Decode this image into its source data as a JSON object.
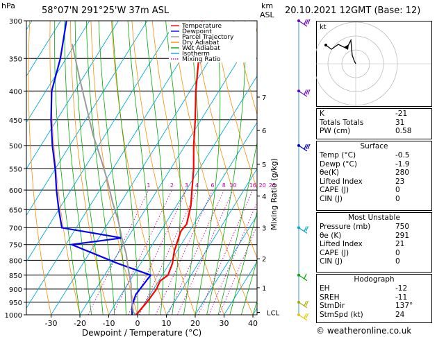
{
  "header": {
    "pressure_unit": "hPa",
    "location": "58°07'N  291°25'W  37m  ASL",
    "height_unit_line1": "km",
    "height_unit_line2": "ASL",
    "datetime": "20.10.2021  12GMT  (Base: 12)"
  },
  "chart_data": {
    "type": "line",
    "title": "",
    "xlabel": "Dewpoint / Temperature (°C)",
    "ylabel": "hPa",
    "xlim": [
      -35,
      40
    ],
    "ylim": [
      1000,
      300
    ],
    "x_ticks": [
      -30,
      -20,
      -10,
      0,
      10,
      20,
      30,
      40
    ],
    "pressure_levels": [
      300,
      350,
      400,
      450,
      500,
      550,
      600,
      650,
      700,
      750,
      800,
      850,
      900,
      950,
      1000
    ],
    "km_ticks": [
      {
        "label": "7",
        "p": 410
      },
      {
        "label": "6",
        "p": 470
      },
      {
        "label": "5",
        "p": 540
      },
      {
        "label": "4",
        "p": 615
      },
      {
        "label": "3",
        "p": 700
      },
      {
        "label": "2",
        "p": 795
      },
      {
        "label": "1",
        "p": 895
      },
      {
        "label": "LCL",
        "p": 990
      }
    ],
    "mixing_ratio_labels": [
      "1",
      "2",
      "3",
      "4",
      "6",
      "8",
      "10",
      "16",
      "20",
      "25"
    ],
    "mixing_ratio_axis_label": "Mixing Ratio (g/kg)",
    "legend_position": "top-left",
    "legend": [
      {
        "name": "Temperature",
        "color": "#ff0000",
        "dash": "solid"
      },
      {
        "name": "Dewpoint",
        "color": "#0000ff",
        "dash": "solid"
      },
      {
        "name": "Parcel Trajectory",
        "color": "#999999",
        "dash": "solid"
      },
      {
        "name": "Dry Adiabat",
        "color": "#ff8c00",
        "dash": "solid"
      },
      {
        "name": "Wet Adiabat",
        "color": "#00aa00",
        "dash": "solid"
      },
      {
        "name": "Isotherm",
        "color": "#00aadd",
        "dash": "solid"
      },
      {
        "name": "Mixing Ratio",
        "color": "#cc00aa",
        "dash": "dotted"
      }
    ],
    "series": [
      {
        "name": "Temperature",
        "color": "#ff0000",
        "points": [
          [
            -0.5,
            1000
          ],
          [
            0.5,
            950
          ],
          [
            1.0,
            900
          ],
          [
            0.5,
            870
          ],
          [
            2.0,
            850
          ],
          [
            1.0,
            810
          ],
          [
            0.0,
            790
          ],
          [
            -1.0,
            770
          ],
          [
            -3.0,
            710
          ],
          [
            -2.5,
            690
          ],
          [
            -5.0,
            640
          ],
          [
            -8.0,
            600
          ],
          [
            -12.0,
            550
          ],
          [
            -17.0,
            500
          ],
          [
            -22.0,
            450
          ],
          [
            -28.0,
            400
          ],
          [
            -34.0,
            350
          ],
          [
            -41.0,
            300
          ]
        ]
      },
      {
        "name": "Dewpoint",
        "color": "#0000ff",
        "points": [
          [
            -1.9,
            1000
          ],
          [
            -4.0,
            960
          ],
          [
            -5.0,
            920
          ],
          [
            -4.0,
            850
          ],
          [
            -18.0,
            810
          ],
          [
            -38.0,
            750
          ],
          [
            -22.0,
            730
          ],
          [
            -45.0,
            700
          ],
          [
            -50.0,
            650
          ],
          [
            -55.0,
            600
          ],
          [
            -60.0,
            550
          ],
          [
            -66.0,
            500
          ],
          [
            -72.0,
            450
          ],
          [
            -78.0,
            400
          ],
          [
            -82.0,
            350
          ],
          [
            -88.0,
            300
          ]
        ]
      },
      {
        "name": "Parcel Trajectory",
        "color": "#999999",
        "points": [
          [
            -0.5,
            1000
          ],
          [
            -2.0,
            990
          ],
          [
            -6.0,
            930
          ],
          [
            -9.0,
            880
          ],
          [
            -13.0,
            830
          ],
          [
            -17.0,
            780
          ],
          [
            -22.0,
            730
          ],
          [
            -27.0,
            680
          ],
          [
            -33.0,
            630
          ],
          [
            -39.0,
            580
          ],
          [
            -46.0,
            530
          ],
          [
            -54.0,
            480
          ],
          [
            -62.0,
            430
          ],
          [
            -71.0,
            380
          ],
          [
            -81.0,
            330
          ]
        ]
      }
    ]
  },
  "indices": [
    {
      "label": "K",
      "value": "-21"
    },
    {
      "label": "Totals Totals",
      "value": "31"
    },
    {
      "label": "PW (cm)",
      "value": "0.58"
    }
  ],
  "surface": {
    "title": "Surface",
    "rows": [
      {
        "label": "Temp (°C)",
        "value": "-0.5"
      },
      {
        "label": "Dewp (°C)",
        "value": "-1.9"
      },
      {
        "label": "θe(K)",
        "value": "280"
      },
      {
        "label": "Lifted Index",
        "value": "23"
      },
      {
        "label": "CAPE (J)",
        "value": "0"
      },
      {
        "label": "CIN (J)",
        "value": "0"
      }
    ]
  },
  "most_unstable": {
    "title": "Most Unstable",
    "rows": [
      {
        "label": "Pressure (mb)",
        "value": "750"
      },
      {
        "label": "θe (K)",
        "value": "291"
      },
      {
        "label": "Lifted Index",
        "value": "21"
      },
      {
        "label": "CAPE (J)",
        "value": "0"
      },
      {
        "label": "CIN (J)",
        "value": "0"
      }
    ]
  },
  "hodograph": {
    "title": "Hodograph",
    "corner_label": "kt",
    "rows": [
      {
        "label": "EH",
        "value": "-12"
      },
      {
        "label": "SREH",
        "value": "-11"
      },
      {
        "label": "StmDir",
        "value": "137°"
      },
      {
        "label": "StmSpd (kt)",
        "value": "24"
      }
    ]
  },
  "footer": "© weatheronline.co.uk"
}
